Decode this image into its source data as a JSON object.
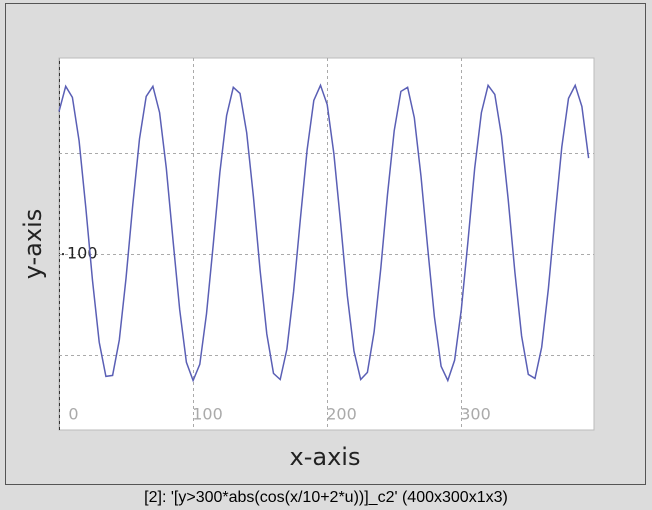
{
  "chart_data": {
    "type": "line",
    "x_label": "x-axis",
    "y_label": "y-axis",
    "x": [
      0,
      5,
      10,
      15,
      20,
      25,
      30,
      35,
      40,
      45,
      50,
      55,
      60,
      65,
      70,
      75,
      80,
      85,
      90,
      95,
      100,
      105,
      110,
      115,
      120,
      125,
      130,
      135,
      140,
      145,
      150,
      155,
      160,
      165,
      170,
      175,
      180,
      185,
      190,
      195,
      200,
      205,
      210,
      215,
      220,
      225,
      230,
      235,
      240,
      245,
      250,
      255,
      260,
      265,
      270,
      275,
      280,
      285,
      290,
      295,
      300,
      305,
      310,
      315,
      320,
      325,
      330,
      335,
      340,
      345,
      350,
      355,
      360,
      365,
      370,
      375,
      380,
      385,
      390,
      395
    ],
    "values": [
      241,
      266,
      255,
      212,
      146,
      74,
      13,
      -21,
      -20,
      15,
      76,
      148,
      214,
      256,
      266,
      240,
      185,
      114,
      45,
      -7,
      -25,
      -9,
      41,
      109,
      181,
      237,
      265,
      259,
      220,
      157,
      84,
      21,
      -18,
      -24,
      6,
      63,
      135,
      203,
      252,
      267,
      248,
      199,
      131,
      59,
      4,
      -24,
      -17,
      23,
      86,
      159,
      222,
      261,
      265,
      235,
      177,
      106,
      38,
      -11,
      -25,
      -5,
      45,
      113,
      185,
      240,
      267,
      258,
      217,
      154,
      82,
      19,
      -19,
      -23,
      8,
      66,
      138,
      206,
      254,
      267,
      246,
      195
    ],
    "color": "#5a5fb5",
    "xlim": [
      0,
      399
    ],
    "xticks": [
      0,
      100,
      200,
      300
    ],
    "ylim": [
      -74,
      294
    ],
    "yticks": [
      100
    ],
    "ygrid": [
      0,
      100,
      200
    ],
    "grid": true
  },
  "window": {
    "caption": "[2]: '[y>300*abs(cos(x/10+2*u))]_c2' (400x300x1x3)"
  }
}
